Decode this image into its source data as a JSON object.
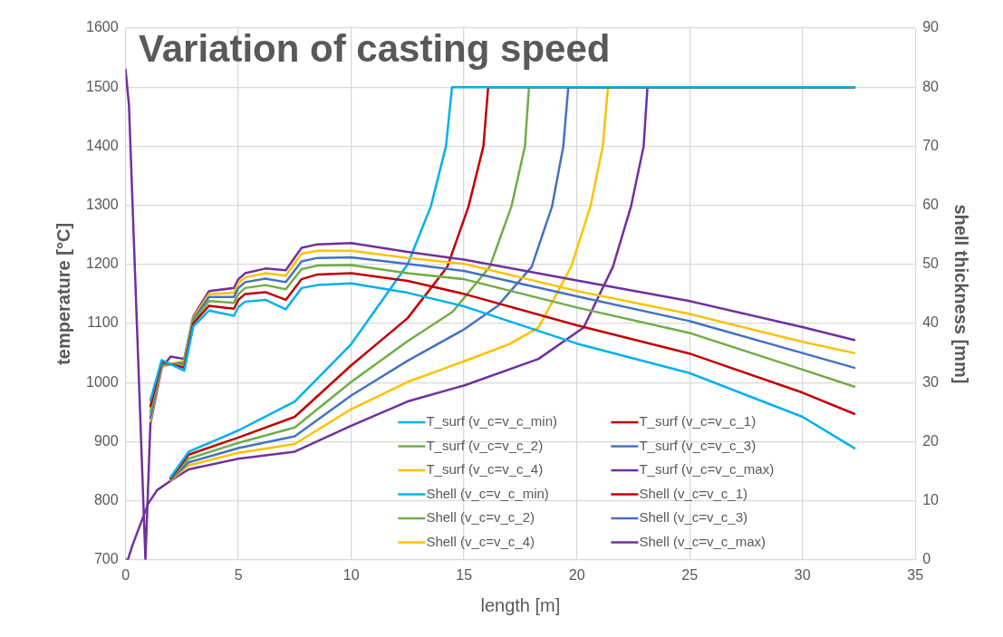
{
  "chart_data": {
    "type": "line",
    "title": "Variation of casting speed",
    "xlabel": "length [m]",
    "ylabel": "temperature [°C]",
    "y2label": "shell thickness [mm]",
    "xlim": [
      0,
      35
    ],
    "xticks": [
      0,
      5,
      10,
      15,
      20,
      25,
      30,
      35
    ],
    "ylim": [
      700,
      1600
    ],
    "yticks": [
      700,
      800,
      900,
      1000,
      1100,
      1200,
      1300,
      1400,
      1500,
      1600
    ],
    "y2lim": [
      0,
      90
    ],
    "y2ticks": [
      0,
      10,
      20,
      30,
      40,
      50,
      60,
      70,
      80,
      90
    ],
    "grid": true,
    "legend": "bottom",
    "marker": "none",
    "series": [
      {
        "name": "T_surf (v_c=v_c_min)",
        "color": "#00b0f0",
        "x": [
          1.1,
          1.6,
          2.6,
          3.0,
          3.7,
          4.8,
          5.0,
          5.3,
          6.2,
          7.1,
          7.8,
          8.5,
          10,
          12.5,
          15,
          20,
          25,
          30,
          32.3
        ],
        "values": [
          970,
          1038,
          1020,
          1095,
          1122,
          1113,
          1128,
          1137,
          1140,
          1124,
          1160,
          1165,
          1168,
          1152,
          1129,
          1066,
          1016,
          942,
          889
        ]
      },
      {
        "name": "T_surf (v_c=v_c_1)",
        "color": "#c00000",
        "x": [
          1.1,
          1.6,
          2.6,
          3.0,
          3.7,
          4.8,
          5.0,
          5.3,
          6.2,
          7.1,
          7.8,
          8.5,
          10,
          12.5,
          15,
          20,
          25,
          30,
          32.3
        ],
        "values": [
          960,
          1035,
          1025,
          1100,
          1130,
          1125,
          1140,
          1150,
          1153,
          1140,
          1175,
          1183,
          1185,
          1172,
          1150,
          1097,
          1049,
          983,
          947
        ]
      },
      {
        "name": "T_surf (v_c=v_c_2)",
        "color": "#70ad47",
        "x": [
          1.1,
          1.6,
          2.6,
          3.0,
          3.7,
          4.8,
          5.0,
          5.3,
          6.2,
          7.1,
          7.8,
          8.5,
          10,
          12.5,
          15,
          20,
          25,
          30,
          32.3
        ],
        "values": [
          950,
          1032,
          1030,
          1104,
          1138,
          1135,
          1150,
          1160,
          1165,
          1158,
          1192,
          1198,
          1199,
          1185,
          1175,
          1127,
          1084,
          1022,
          993
        ]
      },
      {
        "name": "T_surf (v_c=v_c_3)",
        "color": "#4472c4",
        "x": [
          1.1,
          1.6,
          2.6,
          3.0,
          3.7,
          4.8,
          5.0,
          5.3,
          6.2,
          7.1,
          7.8,
          8.5,
          10,
          12.5,
          15,
          20,
          25,
          30,
          32.3
        ],
        "values": [
          940,
          1030,
          1033,
          1107,
          1145,
          1145,
          1160,
          1170,
          1176,
          1170,
          1205,
          1211,
          1212,
          1201,
          1189,
          1146,
          1104,
          1050,
          1025
        ]
      },
      {
        "name": "T_surf (v_c=v_c_4)",
        "color": "#ffc000",
        "x": [
          1.1,
          1.6,
          2.6,
          3.0,
          3.7,
          4.8,
          5.0,
          5.3,
          6.2,
          7.1,
          7.8,
          8.5,
          10,
          12.5,
          15,
          20,
          25,
          30,
          32.3
        ],
        "values": [
          935,
          1027,
          1037,
          1110,
          1150,
          1152,
          1168,
          1178,
          1185,
          1181,
          1218,
          1223,
          1223,
          1211,
          1201,
          1155,
          1116,
          1069,
          1050
        ]
      },
      {
        "name": "T_surf (v_c=v_c_max)",
        "color": "#7030a0",
        "x": [
          0,
          0.15,
          0.88,
          1.1,
          1.6,
          2.0,
          2.6,
          3.0,
          3.7,
          4.8,
          5.0,
          5.3,
          6.2,
          7.1,
          7.8,
          8.5,
          10,
          12.5,
          15,
          20,
          25,
          30,
          32.3
        ],
        "values": [
          1530,
          1470,
          700,
          930,
          1025,
          1044,
          1040,
          1112,
          1155,
          1160,
          1175,
          1185,
          1193,
          1190,
          1228,
          1234,
          1236,
          1221,
          1208,
          1173,
          1138,
          1094,
          1072
        ]
      },
      {
        "name": "Shell (v_c=v_c_min)",
        "color": "#00b0f0",
        "axis": "y2",
        "x": [
          2.0,
          2.8,
          5,
          7.5,
          10,
          10.52,
          12.5,
          13.53,
          14.2,
          14.47,
          32.3
        ],
        "values": [
          14,
          18.3,
          21.9,
          26.8,
          36.5,
          39.3,
          50,
          59.8,
          70,
          80,
          80
        ]
      },
      {
        "name": "Shell (v_c=v_c_1)",
        "color": "#c00000",
        "axis": "y2",
        "x": [
          2.0,
          2.8,
          5,
          7.5,
          10,
          12.5,
          14.26,
          15.2,
          15.86,
          16.07,
          32.3
        ],
        "values": [
          13.8,
          17.8,
          20.7,
          24.2,
          32.9,
          40.9,
          49.6,
          59.8,
          70,
          80,
          80
        ]
      },
      {
        "name": "Shell (v_c=v_c_2)",
        "color": "#70ad47",
        "axis": "y2",
        "x": [
          2.0,
          2.8,
          5,
          7.5,
          10,
          12.5,
          14.5,
          16.14,
          17.1,
          17.7,
          17.88,
          32.3
        ],
        "values": [
          13.7,
          17.1,
          19.8,
          22.4,
          30.1,
          37,
          42,
          49.6,
          59.8,
          70,
          80,
          80
        ]
      },
      {
        "name": "Shell (v_c=v_c_3)",
        "color": "#4472c4",
        "axis": "y2",
        "x": [
          2.0,
          2.8,
          5,
          7.5,
          10,
          12.5,
          15,
          16.5,
          18.0,
          18.9,
          19.4,
          19.62,
          32.3
        ],
        "values": [
          13.6,
          16.5,
          18.9,
          20.9,
          27.8,
          33.7,
          39,
          43,
          49.6,
          59.8,
          70,
          80,
          80
        ]
      },
      {
        "name": "Shell (v_c=v_c_4)",
        "color": "#ffc000",
        "axis": "y2",
        "x": [
          2.0,
          2.8,
          5,
          7.5,
          10,
          12.5,
          15,
          17,
          18.3,
          19.75,
          20.6,
          21.15,
          21.38,
          32.3
        ],
        "values": [
          13.5,
          16,
          18.1,
          19.6,
          25.5,
          30.1,
          33.6,
          36.5,
          39.3,
          49.6,
          59.8,
          70,
          80,
          80
        ]
      },
      {
        "name": "Shell (v_c=v_c_max)",
        "color": "#7030a0",
        "axis": "y2",
        "x": [
          0,
          0.1,
          0.3,
          1.0,
          1.4,
          2.0,
          2.8,
          5,
          7.5,
          10,
          12.5,
          15,
          18.3,
          20.3,
          21.6,
          22.4,
          22.96,
          23.13,
          32.3
        ],
        "values": [
          0,
          0,
          2.4,
          9.5,
          11.8,
          13.4,
          15.3,
          17.1,
          18.3,
          22.7,
          26.8,
          29.5,
          34,
          39.3,
          49.6,
          59.8,
          70,
          80,
          80
        ]
      }
    ]
  }
}
